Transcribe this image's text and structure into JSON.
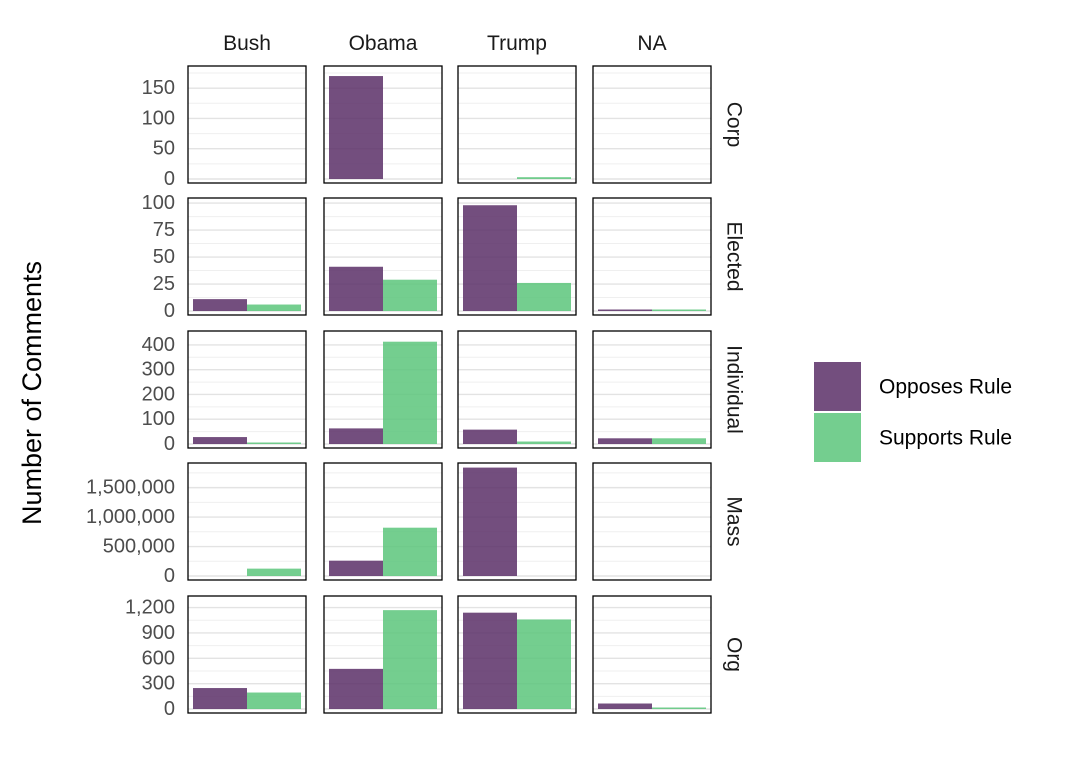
{
  "chart_data": {
    "type": "bar",
    "facet_columns": [
      "Bush",
      "Obama",
      "Trump",
      "NA"
    ],
    "facet_rows": [
      {
        "label": "Corp",
        "ylim": [
          0,
          180
        ],
        "ticks": [
          0,
          50,
          100,
          150
        ],
        "tick_labels": [
          "0",
          "50",
          "100",
          "150"
        ]
      },
      {
        "label": "Elected",
        "ylim": [
          0,
          101
        ],
        "ticks": [
          0,
          25,
          50,
          75,
          100
        ],
        "tick_labels": [
          "0",
          "25",
          "50",
          "75",
          "100"
        ]
      },
      {
        "label": "Individual",
        "ylim": [
          0,
          440
        ],
        "ticks": [
          0,
          100,
          200,
          300,
          400
        ],
        "tick_labels": [
          "0",
          "100",
          "200",
          "300",
          "400"
        ]
      },
      {
        "label": "Mass",
        "ylim": [
          0,
          1850000
        ],
        "ticks": [
          0,
          500000,
          1000000,
          1500000
        ],
        "tick_labels": [
          "0",
          "500,000",
          "1,000,000",
          "1,500,000"
        ]
      },
      {
        "label": "Org",
        "ylim": [
          0,
          1290
        ],
        "ticks": [
          0,
          300,
          600,
          900,
          1200
        ],
        "tick_labels": [
          "0",
          "300",
          "600",
          "900",
          "1,200"
        ]
      }
    ],
    "series": [
      {
        "name": "Opposes Rule",
        "color": "#5b2f67",
        "opacity": 0.85
      },
      {
        "name": "Supports Rule",
        "color": "#5cc57b",
        "opacity": 0.85
      }
    ],
    "values": {
      "Corp": {
        "Bush": [
          0,
          0
        ],
        "Obama": [
          170,
          0
        ],
        "Trump": [
          0,
          3
        ],
        "NA": [
          0,
          0
        ]
      },
      "Elected": {
        "Bush": [
          11,
          6
        ],
        "Obama": [
          41,
          29
        ],
        "Trump": [
          98,
          26
        ],
        "NA": [
          1,
          1
        ]
      },
      "Individual": {
        "Bush": [
          28,
          5
        ],
        "Obama": [
          63,
          413
        ],
        "Trump": [
          58,
          10
        ],
        "NA": [
          23,
          23
        ]
      },
      "Mass": {
        "Bush": [
          0,
          125000
        ],
        "Obama": [
          260000,
          820000
        ],
        "Trump": [
          1840000,
          0
        ],
        "NA": [
          0,
          0
        ]
      },
      "Org": {
        "Bush": [
          248,
          195
        ],
        "Obama": [
          475,
          1170
        ],
        "Trump": [
          1140,
          1060
        ],
        "NA": [
          65,
          5
        ]
      }
    },
    "ylabel": "Number of Comments",
    "xlabel": "",
    "legend_position": "right",
    "grid": true
  }
}
